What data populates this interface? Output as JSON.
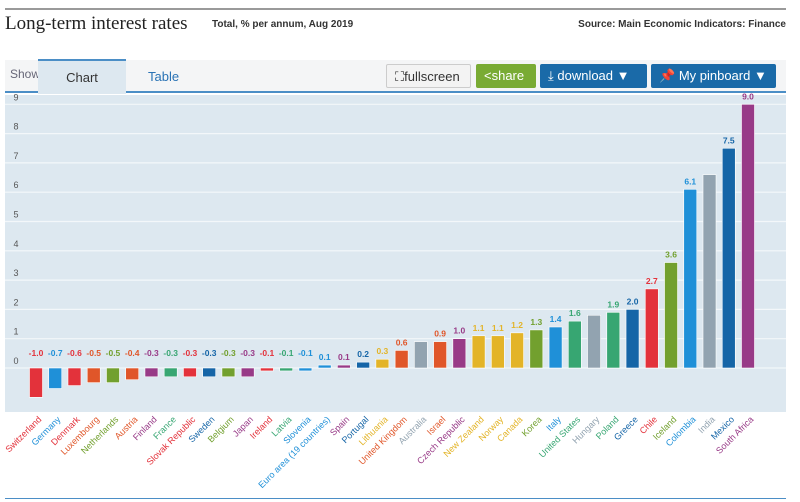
{
  "header": {
    "title": "Long-term interest rates",
    "subtitle": "Total, % per annum, Aug 2019",
    "source": "Source: Main Economic Indicators: Finance"
  },
  "toolbar": {
    "show_label": "Show:",
    "tabs": [
      "Chart",
      "Table"
    ],
    "active_tab": "Chart",
    "fullscreen": "fullscreen",
    "share": "share",
    "download": "download ▼",
    "pinboard": "My pinboard ▼"
  },
  "colors": {
    "red": "#e3323b",
    "blue": "#1f90d8",
    "orange": "#e05629",
    "green": "#72a02e",
    "purple": "#983a87",
    "teal": "#37a672",
    "darkblue": "#1565a7",
    "gray": "#92a3b0",
    "yellow": "#e3b428",
    "plot_bg": "#dde8f0"
  },
  "chart_data": {
    "type": "bar",
    "title": "",
    "xlabel": "",
    "ylabel": "",
    "ylim": [
      -1.2,
      9.4
    ],
    "yticks": [
      0,
      1,
      2,
      3,
      4,
      5,
      6,
      7,
      8,
      9
    ],
    "grid": true,
    "categories": [
      "Switzerland",
      "Germany",
      "Denmark",
      "Luxembourg",
      "Netherlands",
      "Austria",
      "Finland",
      "France",
      "Slovak Republic",
      "Sweden",
      "Belgium",
      "Japan",
      "Ireland",
      "Latvia",
      "Slovenia",
      "Euro area (19 countries)",
      "Spain",
      "Portugal",
      "Lithuania",
      "United Kingdom",
      "Australia",
      "Israel",
      "Czech Republic",
      "New Zealand",
      "Norway",
      "Canada",
      "Korea",
      "Italy",
      "United States",
      "Hungary",
      "Poland",
      "Greece",
      "Chile",
      "Iceland",
      "Colombia",
      "India",
      "Mexico",
      "South Africa"
    ],
    "values": [
      -1.0,
      -0.7,
      -0.6,
      -0.5,
      -0.5,
      -0.4,
      -0.3,
      -0.3,
      -0.3,
      -0.3,
      -0.3,
      -0.3,
      -0.1,
      -0.1,
      -0.1,
      0.1,
      0.1,
      0.2,
      0.3,
      0.6,
      0.9,
      0.9,
      1.0,
      1.1,
      1.1,
      1.2,
      1.3,
      1.4,
      1.6,
      1.8,
      1.9,
      2.0,
      2.7,
      3.6,
      6.1,
      6.6,
      7.5,
      9.0
    ],
    "labeled": [
      true,
      true,
      true,
      true,
      true,
      true,
      true,
      true,
      true,
      true,
      true,
      true,
      true,
      true,
      true,
      true,
      true,
      true,
      true,
      true,
      false,
      true,
      true,
      true,
      true,
      true,
      true,
      true,
      true,
      false,
      true,
      true,
      true,
      true,
      true,
      false,
      true,
      true
    ],
    "bar_colors": [
      "red",
      "blue",
      "red",
      "orange",
      "green",
      "orange",
      "purple",
      "teal",
      "red",
      "darkblue",
      "green",
      "purple",
      "red",
      "teal",
      "blue",
      "blue",
      "purple",
      "darkblue",
      "yellow",
      "orange",
      "gray",
      "orange",
      "purple",
      "yellow",
      "yellow",
      "yellow",
      "green",
      "blue",
      "teal",
      "gray",
      "teal",
      "darkblue",
      "red",
      "green",
      "blue",
      "gray",
      "darkblue",
      "purple"
    ]
  }
}
